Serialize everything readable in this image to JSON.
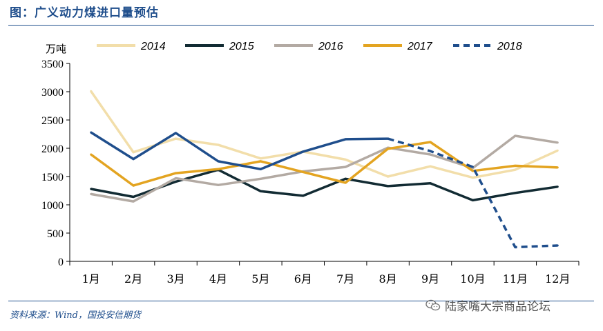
{
  "page": {
    "title": "图：广义动力煤进口量预估",
    "source": "资料来源：Wind，国投安信期货",
    "watermark": "陆家嘴大宗商品论坛"
  },
  "chart_data": {
    "type": "line",
    "title": "",
    "xlabel": "",
    "ylabel": "万吨",
    "ylim": [
      0,
      3500
    ],
    "yticks": [
      0,
      500,
      1000,
      1500,
      2000,
      2500,
      3000,
      3500
    ],
    "categories": [
      "1月",
      "2月",
      "3月",
      "4月",
      "5月",
      "6月",
      "7月",
      "8月",
      "9月",
      "10月",
      "11月",
      "12月"
    ],
    "legend_position": "top",
    "grid": false,
    "series": [
      {
        "name": "2014",
        "color": "#f2deaa",
        "dash": false,
        "values": [
          3010,
          1930,
          2170,
          2060,
          1820,
          1940,
          1800,
          1500,
          1680,
          1480,
          1620,
          1960
        ]
      },
      {
        "name": "2015",
        "color": "#122b33",
        "dash": false,
        "values": [
          1280,
          1140,
          1410,
          1620,
          1240,
          1160,
          1460,
          1330,
          1380,
          1080,
          1210,
          1320
        ]
      },
      {
        "name": "2016",
        "color": "#b3aaa3",
        "dash": false,
        "values": [
          1190,
          1060,
          1470,
          1350,
          1460,
          1590,
          1670,
          2010,
          1890,
          1650,
          2220,
          2100
        ]
      },
      {
        "name": "2017",
        "color": "#e3a421",
        "dash": false,
        "values": [
          1890,
          1340,
          1560,
          1630,
          1770,
          1580,
          1390,
          1990,
          2110,
          1600,
          1690,
          1660
        ]
      },
      {
        "name": "2018",
        "color": "#1f4e8c",
        "dash": true,
        "values": [
          2280,
          1810,
          2270,
          1770,
          1630,
          1940,
          2160,
          2170,
          1950,
          1670,
          250,
          280
        ],
        "solid_until_index": 7
      }
    ]
  }
}
